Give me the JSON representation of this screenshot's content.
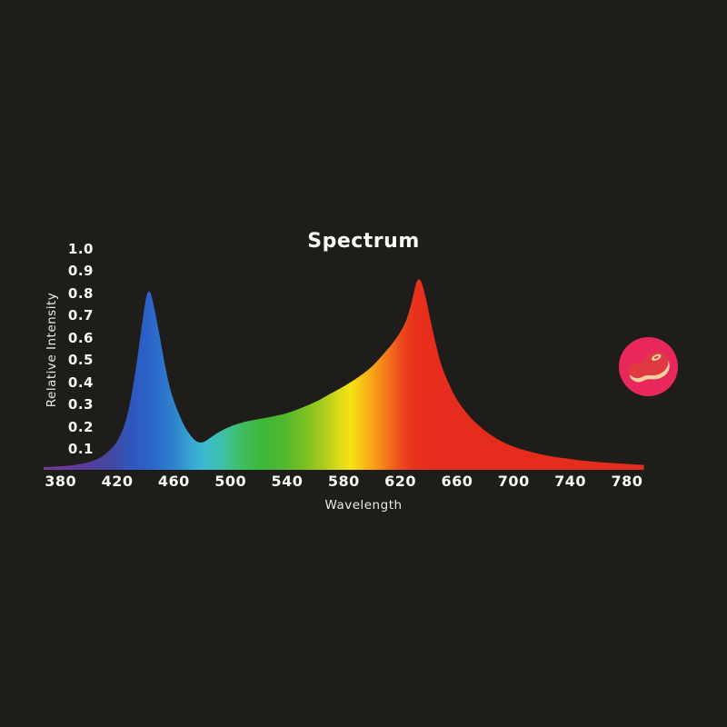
{
  "page": {
    "background": "#1e1d1a",
    "text_color": "#faf8f5"
  },
  "chart_data": {
    "type": "area",
    "title": "Spectrum",
    "xlabel": "Wavelength",
    "ylabel": "Relative Intensity",
    "x_ticks": [
      "380",
      "420",
      "460",
      "500",
      "540",
      "580",
      "620",
      "660",
      "700",
      "740",
      "780"
    ],
    "x_tick_values": [
      380,
      420,
      460,
      500,
      540,
      580,
      620,
      660,
      700,
      740,
      780
    ],
    "y_ticks": [
      "0.1",
      "0.2",
      "0.3",
      "0.4",
      "0.5",
      "0.6",
      "0.7",
      "0.8",
      "0.9",
      "1.0"
    ],
    "y_tick_values": [
      0.1,
      0.2,
      0.3,
      0.4,
      0.5,
      0.6,
      0.7,
      0.8,
      0.9,
      1.0
    ],
    "xlim": [
      368,
      792
    ],
    "ylim": [
      0,
      1.0
    ],
    "grid": false,
    "legend": false,
    "series": [
      {
        "name": "spectrum",
        "points": [
          [
            368,
            0.012
          ],
          [
            380,
            0.016
          ],
          [
            390,
            0.022
          ],
          [
            400,
            0.035
          ],
          [
            408,
            0.055
          ],
          [
            415,
            0.09
          ],
          [
            420,
            0.13
          ],
          [
            425,
            0.2
          ],
          [
            429,
            0.3
          ],
          [
            433,
            0.45
          ],
          [
            437,
            0.63
          ],
          [
            440,
            0.76
          ],
          [
            442,
            0.8
          ],
          [
            444,
            0.785
          ],
          [
            447,
            0.7
          ],
          [
            450,
            0.6
          ],
          [
            454,
            0.46
          ],
          [
            458,
            0.35
          ],
          [
            463,
            0.26
          ],
          [
            468,
            0.19
          ],
          [
            473,
            0.145
          ],
          [
            477,
            0.125
          ],
          [
            481,
            0.125
          ],
          [
            486,
            0.145
          ],
          [
            492,
            0.17
          ],
          [
            500,
            0.195
          ],
          [
            510,
            0.215
          ],
          [
            520,
            0.228
          ],
          [
            530,
            0.24
          ],
          [
            540,
            0.255
          ],
          [
            550,
            0.278
          ],
          [
            560,
            0.305
          ],
          [
            570,
            0.34
          ],
          [
            580,
            0.375
          ],
          [
            590,
            0.415
          ],
          [
            600,
            0.465
          ],
          [
            608,
            0.52
          ],
          [
            614,
            0.565
          ],
          [
            619,
            0.61
          ],
          [
            624,
            0.67
          ],
          [
            628,
            0.755
          ],
          [
            631,
            0.835
          ],
          [
            633,
            0.855
          ],
          [
            635,
            0.84
          ],
          [
            638,
            0.77
          ],
          [
            641,
            0.68
          ],
          [
            645,
            0.565
          ],
          [
            649,
            0.47
          ],
          [
            654,
            0.39
          ],
          [
            659,
            0.325
          ],
          [
            665,
            0.27
          ],
          [
            671,
            0.225
          ],
          [
            678,
            0.185
          ],
          [
            685,
            0.152
          ],
          [
            692,
            0.126
          ],
          [
            700,
            0.104
          ],
          [
            708,
            0.088
          ],
          [
            717,
            0.073
          ],
          [
            727,
            0.06
          ],
          [
            737,
            0.051
          ],
          [
            748,
            0.042
          ],
          [
            758,
            0.036
          ],
          [
            768,
            0.031
          ],
          [
            778,
            0.027
          ],
          [
            785,
            0.024
          ],
          [
            792,
            0.022
          ]
        ]
      }
    ],
    "gradient_stops": [
      [
        368,
        "#7a3b94"
      ],
      [
        395,
        "#5c3a9c"
      ],
      [
        415,
        "#44479f"
      ],
      [
        430,
        "#2f57be"
      ],
      [
        445,
        "#2c66cb"
      ],
      [
        460,
        "#2f82cc"
      ],
      [
        472,
        "#37a6d4"
      ],
      [
        483,
        "#3cbcce"
      ],
      [
        495,
        "#3fc0a5"
      ],
      [
        508,
        "#3fbd62"
      ],
      [
        522,
        "#3cb838"
      ],
      [
        538,
        "#52b72c"
      ],
      [
        552,
        "#79c024"
      ],
      [
        565,
        "#a8cb1e"
      ],
      [
        576,
        "#d8d919"
      ],
      [
        585,
        "#f6e214"
      ],
      [
        593,
        "#f8c115"
      ],
      [
        602,
        "#f79c18"
      ],
      [
        612,
        "#f4711c"
      ],
      [
        620,
        "#ee4a1e"
      ],
      [
        630,
        "#e8321d"
      ],
      [
        645,
        "#e62c1c"
      ],
      [
        792,
        "#e62c1c"
      ]
    ],
    "annotations": {
      "blue_peak": {
        "wavelength": 442,
        "intensity": 0.8
      },
      "red_peak": {
        "wavelength": 633,
        "intensity": 0.855
      }
    }
  },
  "badge": {
    "name": "steak",
    "circle_color": "#e8285a",
    "meat_color": "#df3a41",
    "fat_color": "#f3d2a2"
  }
}
